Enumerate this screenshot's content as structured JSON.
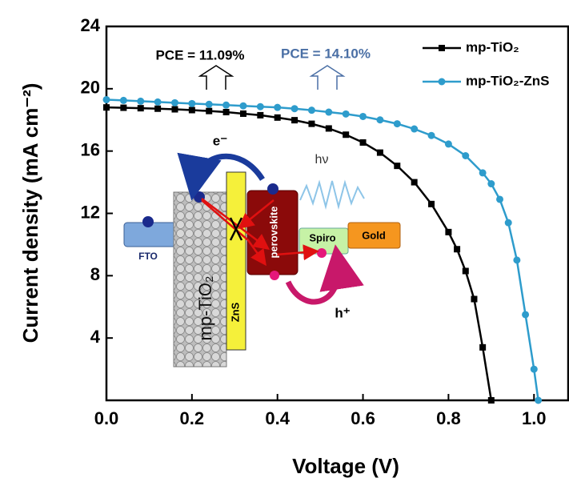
{
  "chart_data": {
    "type": "line",
    "x_label": "Voltage (V)",
    "y_label": "Current density (mA cm⁻²)",
    "xlim": [
      0,
      1.08
    ],
    "ylim": [
      0,
      24
    ],
    "xticks": [
      {
        "value": 0,
        "label": "0.0"
      },
      {
        "value": 0.2,
        "label": "0.2"
      },
      {
        "value": 0.4,
        "label": "0.4"
      },
      {
        "value": 0.6,
        "label": "0.6"
      },
      {
        "value": 0.8,
        "label": "0.8"
      },
      {
        "value": 1,
        "label": "1.0"
      }
    ],
    "yticks": [
      4,
      8,
      12,
      16,
      20,
      24
    ],
    "legend": "upper right",
    "series": [
      {
        "name": "mp-TiO₂",
        "color": "#000000",
        "marker": "square",
        "x": [
          0,
          0.04,
          0.08,
          0.12,
          0.16,
          0.2,
          0.24,
          0.28,
          0.32,
          0.36,
          0.4,
          0.44,
          0.48,
          0.52,
          0.56,
          0.6,
          0.64,
          0.68,
          0.72,
          0.76,
          0.8,
          0.82,
          0.84,
          0.86,
          0.88,
          0.9
        ],
        "values": [
          18.8,
          18.78,
          18.75,
          18.72,
          18.68,
          18.63,
          18.57,
          18.5,
          18.4,
          18.3,
          18.15,
          17.98,
          17.75,
          17.45,
          17.05,
          16.55,
          15.9,
          15.05,
          14.0,
          12.6,
          10.8,
          9.7,
          8.3,
          6.5,
          3.4,
          0
        ]
      },
      {
        "name": "mp-TiO₂-ZnS",
        "color": "#2e9ccc",
        "marker": "circle",
        "x": [
          0,
          0.04,
          0.08,
          0.12,
          0.16,
          0.2,
          0.24,
          0.28,
          0.32,
          0.36,
          0.4,
          0.44,
          0.48,
          0.52,
          0.56,
          0.6,
          0.64,
          0.68,
          0.72,
          0.76,
          0.8,
          0.84,
          0.88,
          0.9,
          0.92,
          0.94,
          0.96,
          0.98,
          1.0,
          1.01
        ],
        "values": [
          19.3,
          19.25,
          19.2,
          19.15,
          19.1,
          19.05,
          19.0,
          18.95,
          18.9,
          18.85,
          18.8,
          18.72,
          18.62,
          18.5,
          18.38,
          18.22,
          18.0,
          17.75,
          17.42,
          17.0,
          16.45,
          15.7,
          14.6,
          13.9,
          12.9,
          11.4,
          9.0,
          5.5,
          2.0,
          0
        ]
      }
    ],
    "annotations": [
      {
        "text": "PCE = 11.09%",
        "color": "#000000"
      },
      {
        "text": "PCE = 14.10%",
        "color": "#4a6fa5"
      }
    ],
    "inset_labels": {
      "fto": "FTO",
      "mp_tio2": "mp-TiO₂",
      "zns": "ZnS",
      "perovskite": "perovskite",
      "spiro": "Spiro",
      "gold": "Gold",
      "electron": "e⁻",
      "photon": "hν",
      "hole": "h⁺"
    }
  }
}
